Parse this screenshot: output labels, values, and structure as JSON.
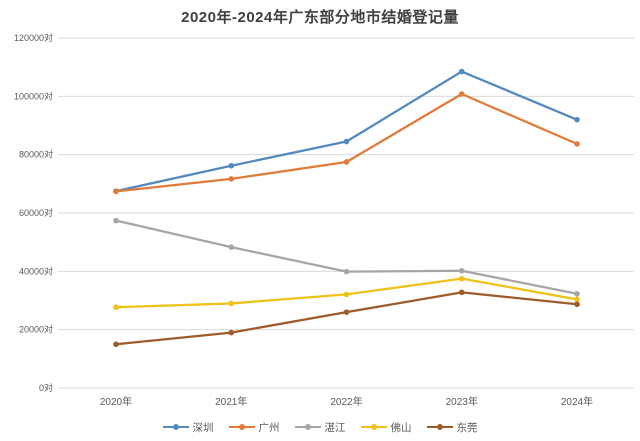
{
  "title": "2020年-2024年广东部分地市结婚登记量",
  "chart_data": {
    "type": "line",
    "title": "2020年-2024年广东部分地市结婚登记量",
    "x": [
      "2020年",
      "2021年",
      "2022年",
      "2023年",
      "2024年"
    ],
    "series": [
      {
        "name": "深圳",
        "color": "#5389BE",
        "values": [
          67500,
          76200,
          84500,
          108500,
          92000
        ]
      },
      {
        "name": "广州",
        "color": "#E07B39",
        "values": [
          67400,
          71700,
          77500,
          100800,
          83700
        ]
      },
      {
        "name": "湛江",
        "color": "#A6A6A6",
        "values": [
          57400,
          48300,
          39900,
          40200,
          32300
        ]
      },
      {
        "name": "佛山",
        "color": "#EEC219",
        "values": [
          27700,
          29000,
          32100,
          37500,
          30400
        ]
      },
      {
        "name": "东莞",
        "color": "#9E5B2B",
        "values": [
          15000,
          19000,
          26000,
          32800,
          28700
        ]
      }
    ],
    "ylim": [
      0,
      120000
    ],
    "ytick_step": 20000,
    "yticks": [
      "0对",
      "20000对",
      "40000对",
      "60000对",
      "80000对",
      "100000对",
      "120000对"
    ],
    "xlabel": "",
    "ylabel": "",
    "grid": true,
    "legend_position": "bottom",
    "colors": {
      "gridline": "#D9D9D9",
      "axis_text": "#595959",
      "title_text": "#404040",
      "background": "#FFFFFF"
    }
  }
}
